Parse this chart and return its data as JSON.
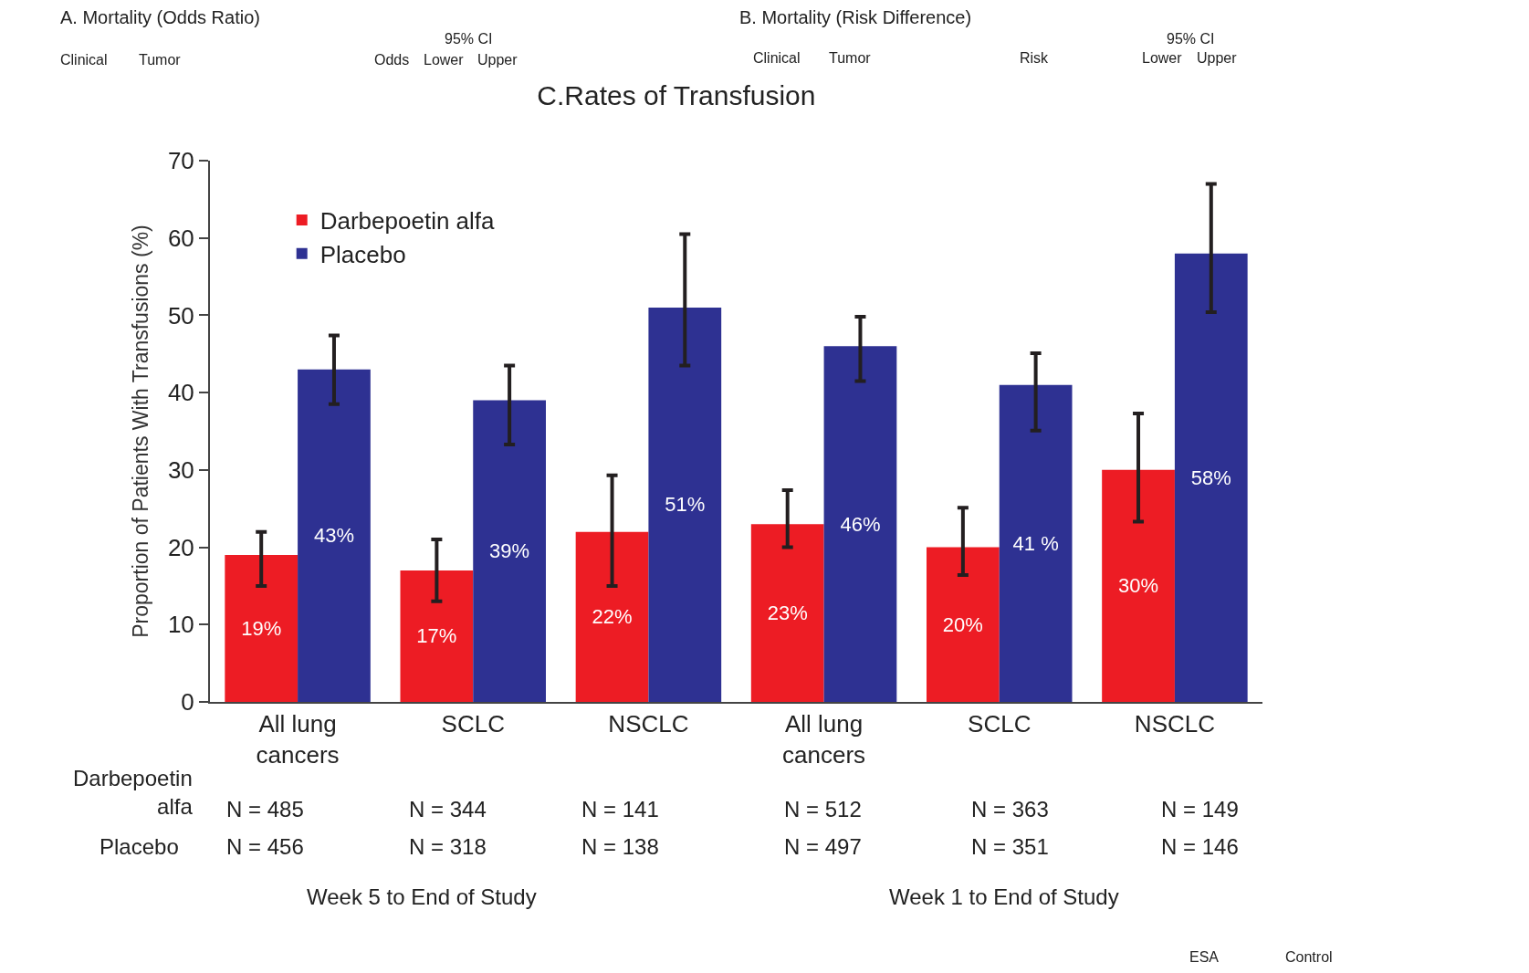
{
  "chart_data": {
    "type": "bar",
    "title": "C.Rates of Transfusion",
    "ylabel": "Proportion of Patients With Transfusions (%)",
    "categories": [
      "All lung cancers",
      "SCLC",
      "NSCLC",
      "All lung cancers",
      "SCLC",
      "NSCLC"
    ],
    "series": [
      {
        "name": "Darbepoetin alfa",
        "color": "#ed1c24",
        "values": [
          19,
          17,
          22,
          23,
          20,
          30
        ],
        "value_labels": [
          "19%",
          "17%",
          "22%",
          "23%",
          "20%",
          "30%"
        ],
        "errors": [
          [
            15,
            22
          ],
          [
            13,
            21
          ],
          [
            15,
            29.3
          ],
          [
            20,
            27.4
          ],
          [
            16.4,
            25.1
          ],
          [
            23.3,
            37.3
          ]
        ]
      },
      {
        "name": "Placebo",
        "color": "#2e3192",
        "values": [
          43,
          39,
          51,
          46,
          41,
          58
        ],
        "value_labels": [
          "43%",
          "39%",
          "51%",
          "46%",
          "41 %",
          "58%"
        ],
        "errors": [
          [
            38.5,
            47.4
          ],
          [
            33.3,
            43.5
          ],
          [
            43.5,
            60.5
          ],
          [
            41.5,
            49.8
          ],
          [
            35.1,
            45.1
          ],
          [
            50.4,
            67
          ]
        ]
      }
    ],
    "ylim": [
      0,
      70
    ],
    "yticks": [
      0,
      10,
      20,
      30,
      40,
      50,
      60,
      70
    ],
    "legend": "top left",
    "annotations": [
      "A. Mortality (Odds Ratio)",
      "Clinical",
      "Tumor",
      "95% CI",
      "Odds",
      "Lower",
      "Upper",
      "B. Mortality (Risk Difference)",
      "Clinical",
      "Tumor",
      "Risk",
      "95% CI",
      "Lower",
      "Upper",
      "Darbepoetin alfa",
      "Placebo",
      "N = 485",
      "N = 344",
      "N = 141",
      "N = 512",
      "N = 363",
      "N = 149",
      "N = 456",
      "N = 318",
      "N = 138",
      "N = 497",
      "N = 351",
      "N = 146",
      "Week 5 to End of Study",
      "Week 1 to End of Study",
      "ESA",
      "Control"
    ]
  }
}
